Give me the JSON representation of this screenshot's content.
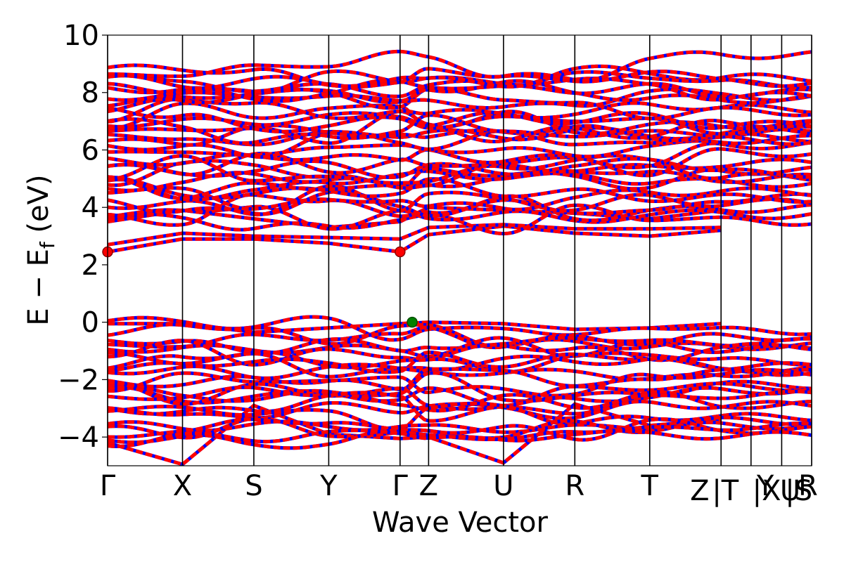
{
  "chart_data": {
    "type": "line",
    "title": "",
    "xlabel": "Wave Vector",
    "ylabel_parts": {
      "base": "E − E",
      "subscript": "f",
      "unit": " (eV)"
    },
    "ylim": [
      -5,
      10
    ],
    "yticks": [
      {
        "value": -4,
        "label": "−4"
      },
      {
        "value": -2,
        "label": "−2"
      },
      {
        "value": 0,
        "label": "0"
      },
      {
        "value": 2,
        "label": "2"
      },
      {
        "value": 4,
        "label": "4"
      },
      {
        "value": 6,
        "label": "6"
      },
      {
        "value": 8,
        "label": "8"
      },
      {
        "value": 10,
        "label": "10"
      }
    ],
    "kpath_labels": [
      "Γ",
      "X",
      "S",
      "Y",
      "Γ",
      "Z",
      "U",
      "R",
      "T",
      "Z",
      "|T",
      "Y",
      "|X",
      "U",
      "|S",
      "R"
    ],
    "kpath_boundaries": [
      0,
      1.05,
      2.05,
      3.1,
      4.1,
      4.5,
      5.55,
      6.55,
      7.6,
      8.6,
      9.02,
      9.45,
      9.87
    ],
    "xlim": [
      0,
      9.87
    ],
    "colors": {
      "spin_up": "#ff0000",
      "spin_down": "#0000ff",
      "vbm": "#008000",
      "cbm": "#ff0000"
    },
    "legend": "none",
    "grid": false,
    "cbm": [
      {
        "x": 0,
        "y": 2.45
      },
      {
        "x": 4.1,
        "y": 2.45
      }
    ],
    "vbm": [
      {
        "x": 4.27,
        "y": 0.0
      }
    ],
    "conduction_bands_sample": [
      {
        "x": [
          0,
          1.05,
          2.05,
          3.1,
          4.1,
          4.5,
          5.55,
          6.55,
          7.6,
          8.6
        ],
        "y": [
          2.45,
          2.9,
          2.9,
          2.75,
          2.45,
          3.05,
          3.35,
          3.1,
          3.0,
          3.2
        ]
      },
      {
        "x": [
          0,
          1.05,
          2.05,
          3.1,
          4.1,
          4.5,
          5.55,
          6.55,
          7.6,
          8.6
        ],
        "y": [
          2.7,
          3.1,
          3.0,
          2.95,
          2.9,
          3.3,
          3.4,
          3.25,
          3.25,
          3.3
        ]
      },
      {
        "x": [
          0,
          1.05,
          2.05,
          3.1,
          4.1,
          4.5,
          5.55,
          6.55,
          7.6,
          8.6
        ],
        "y": [
          3.5,
          3.9,
          3.6,
          3.3,
          3.5,
          4.0,
          3.9,
          3.8,
          3.6,
          3.9
        ]
      }
    ],
    "valence_bands_sample": [
      {
        "x": [
          0,
          1.05,
          2.05,
          3.1,
          4.1,
          4.5,
          5.55,
          6.55,
          7.6,
          8.6
        ],
        "y": [
          -0.05,
          -0.05,
          -0.35,
          -0.2,
          -0.05,
          0.0,
          -0.05,
          -0.25,
          -0.2,
          -0.05
        ]
      },
      {
        "x": [
          0,
          1.05,
          2.05,
          3.1,
          4.1,
          4.5,
          5.55,
          6.55,
          7.6,
          8.6
        ],
        "y": [
          -4.2,
          -4.95,
          -2.9,
          -3.9,
          -4.05,
          -4.0,
          -4.9,
          -2.85,
          -3.6,
          -3.4
        ]
      }
    ]
  }
}
